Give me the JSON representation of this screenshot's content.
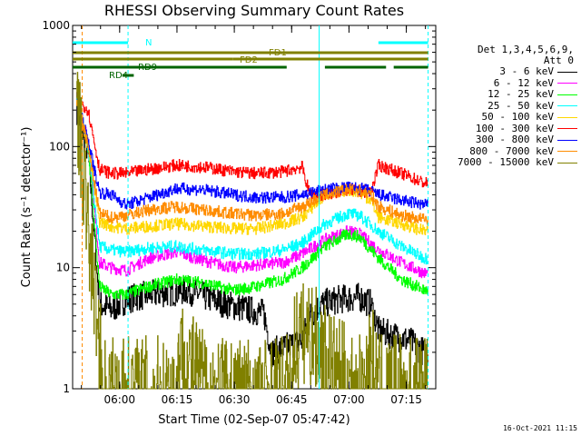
{
  "chart_data": {
    "type": "line",
    "title": "RHESSI Observing Summary Count Rates",
    "xlabel": "Start Time (02-Sep-07 05:47:42)",
    "ylabel": "Count Rate (s⁻¹ detector⁻¹)",
    "yscale": "log",
    "ylim": [
      1,
      1000
    ],
    "xlim_minutes": [
      0,
      95
    ],
    "yticks": [
      "1",
      "10",
      "100",
      "1000"
    ],
    "xticks": [
      "06:00",
      "06:15",
      "06:30",
      "06:45",
      "07:00",
      "07:15"
    ],
    "x_tick_minutes": [
      12.3,
      27.3,
      42.3,
      57.3,
      72.3,
      87.3
    ],
    "legend_title": [
      "Det 1,3,4,5,6,9,",
      "Att 0"
    ],
    "legend_position": "right",
    "series": [
      {
        "name": "3 - 6 keV",
        "color": "#000000",
        "points": [
          [
            1,
            200
          ],
          [
            4,
            90
          ],
          [
            7,
            5
          ],
          [
            10,
            4.5
          ],
          [
            14,
            5.5
          ],
          [
            20,
            6
          ],
          [
            30,
            6.5
          ],
          [
            40,
            5
          ],
          [
            50,
            4.2
          ],
          [
            52,
            2
          ],
          [
            60,
            2.5
          ],
          [
            62,
            4
          ],
          [
            65,
            5
          ],
          [
            70,
            5.5
          ],
          [
            75,
            5.7
          ],
          [
            78,
            5
          ],
          [
            80,
            3
          ],
          [
            88,
            2.5
          ],
          [
            92,
            2
          ]
        ]
      },
      {
        "name": "6 - 12 keV",
        "color": "#ff00ff",
        "points": [
          [
            1,
            250
          ],
          [
            4,
            110
          ],
          [
            7,
            11
          ],
          [
            10,
            10
          ],
          [
            14,
            9.5
          ],
          [
            20,
            12
          ],
          [
            27,
            13.5
          ],
          [
            34,
            11.5
          ],
          [
            42,
            10
          ],
          [
            48,
            10.5
          ],
          [
            55,
            11
          ],
          [
            60,
            13
          ],
          [
            66,
            17
          ],
          [
            72,
            20
          ],
          [
            75,
            19
          ],
          [
            80,
            14
          ],
          [
            86,
            11
          ],
          [
            92,
            9
          ]
        ]
      },
      {
        "name": "12 - 25 keV",
        "color": "#00ff00",
        "points": [
          [
            1,
            250
          ],
          [
            4,
            100
          ],
          [
            7,
            7
          ],
          [
            10,
            6
          ],
          [
            14,
            6
          ],
          [
            20,
            7
          ],
          [
            27,
            8
          ],
          [
            34,
            7.5
          ],
          [
            42,
            6.5
          ],
          [
            48,
            7
          ],
          [
            55,
            8
          ],
          [
            60,
            10
          ],
          [
            66,
            15
          ],
          [
            72,
            19
          ],
          [
            75,
            18
          ],
          [
            80,
            12
          ],
          [
            86,
            8
          ],
          [
            92,
            6.5
          ]
        ]
      },
      {
        "name": "25 - 50 keV",
        "color": "#00ffff",
        "points": [
          [
            1,
            250
          ],
          [
            4,
            100
          ],
          [
            7,
            15
          ],
          [
            10,
            14
          ],
          [
            14,
            13.5
          ],
          [
            20,
            14.5
          ],
          [
            27,
            15
          ],
          [
            34,
            14
          ],
          [
            42,
            13
          ],
          [
            48,
            13
          ],
          [
            55,
            14
          ],
          [
            60,
            16
          ],
          [
            66,
            23
          ],
          [
            72,
            28
          ],
          [
            75,
            27
          ],
          [
            80,
            20
          ],
          [
            86,
            15
          ],
          [
            92,
            12
          ]
        ]
      },
      {
        "name": "50 - 100 keV",
        "color": "#ffd700",
        "points": [
          [
            1,
            250
          ],
          [
            4,
            100
          ],
          [
            7,
            24
          ],
          [
            10,
            22
          ],
          [
            14,
            21
          ],
          [
            20,
            22
          ],
          [
            27,
            23
          ],
          [
            34,
            22
          ],
          [
            42,
            21
          ],
          [
            48,
            21
          ],
          [
            55,
            23
          ],
          [
            60,
            26
          ],
          [
            66,
            40
          ],
          [
            72,
            44
          ],
          [
            75,
            42
          ],
          [
            78,
            36
          ],
          [
            80,
            26
          ],
          [
            86,
            23
          ],
          [
            92,
            20
          ]
        ]
      },
      {
        "name": "100 - 300 keV",
        "color": "#ff0000",
        "points": [
          [
            1,
            250
          ],
          [
            4,
            200
          ],
          [
            7,
            65
          ],
          [
            10,
            60
          ],
          [
            14,
            60
          ],
          [
            20,
            65
          ],
          [
            27,
            70
          ],
          [
            34,
            68
          ],
          [
            42,
            62
          ],
          [
            48,
            60
          ],
          [
            55,
            62
          ],
          [
            60,
            68
          ],
          [
            62,
            40
          ],
          [
            66,
            40
          ],
          [
            72,
            44
          ],
          [
            75,
            43
          ],
          [
            78,
            42
          ],
          [
            80,
            70
          ],
          [
            86,
            60
          ],
          [
            92,
            50
          ]
        ]
      },
      {
        "name": "300 - 800 keV",
        "color": "#0000ff",
        "points": [
          [
            1,
            250
          ],
          [
            4,
            110
          ],
          [
            7,
            42
          ],
          [
            10,
            40
          ],
          [
            14,
            33
          ],
          [
            20,
            38
          ],
          [
            27,
            45
          ],
          [
            34,
            44
          ],
          [
            42,
            40
          ],
          [
            48,
            38
          ],
          [
            55,
            38
          ],
          [
            60,
            40
          ],
          [
            66,
            44
          ],
          [
            72,
            46
          ],
          [
            75,
            45
          ],
          [
            78,
            43
          ],
          [
            80,
            40
          ],
          [
            86,
            36
          ],
          [
            92,
            33
          ]
        ]
      },
      {
        "name": "800 - 7000 keV",
        "color": "#ff8c00",
        "points": [
          [
            1,
            250
          ],
          [
            4,
            100
          ],
          [
            7,
            28
          ],
          [
            10,
            26
          ],
          [
            14,
            27
          ],
          [
            20,
            30
          ],
          [
            27,
            32
          ],
          [
            34,
            30
          ],
          [
            42,
            28
          ],
          [
            48,
            27
          ],
          [
            55,
            28
          ],
          [
            60,
            32
          ],
          [
            66,
            40
          ],
          [
            72,
            44
          ],
          [
            75,
            43
          ],
          [
            78,
            40
          ],
          [
            80,
            32
          ],
          [
            86,
            27
          ],
          [
            92,
            25
          ]
        ]
      },
      {
        "name": "7000 - 15000 keV",
        "color": "#808000",
        "points": [
          [
            1,
            250
          ],
          [
            4,
            20
          ],
          [
            6,
            5
          ],
          [
            8,
            1
          ],
          [
            27,
            1
          ],
          [
            28,
            2
          ],
          [
            36,
            1
          ],
          [
            57,
            1
          ],
          [
            58,
            2.5
          ],
          [
            62,
            3
          ],
          [
            68,
            1.5
          ],
          [
            75,
            1
          ],
          [
            76,
            1
          ],
          [
            78,
            2
          ],
          [
            80,
            1
          ]
        ]
      }
    ],
    "state_bars": [
      {
        "label": "N",
        "color": "#00ffff",
        "segments": [
          [
            0,
            14.5
          ],
          [
            80,
            93
          ]
        ]
      },
      {
        "label": "FD1",
        "color": "#808000",
        "segments": [
          [
            0,
            93
          ]
        ]
      },
      {
        "label": "FD2",
        "color": "#808000",
        "segments": [
          [
            0,
            42
          ],
          [
            42,
            93
          ]
        ]
      },
      {
        "label": "RD4",
        "color": "#006400",
        "segments": [
          [
            13,
            16
          ]
        ]
      },
      {
        "label": "RD9",
        "color": "#006400",
        "segments": [
          [
            0,
            56
          ],
          [
            66,
            82
          ],
          [
            84,
            93
          ]
        ]
      }
    ],
    "vlines": [
      {
        "x": 14.5,
        "color": "#00ffff",
        "style": "dashed"
      },
      {
        "x": 64.5,
        "color": "#00ffff",
        "style": "solid"
      },
      {
        "x": 93,
        "color": "#00ffff",
        "style": "dashed"
      },
      {
        "x": 2.5,
        "color": "#ff8c00",
        "style": "dashed"
      }
    ],
    "grid": false
  },
  "footer_timestamp": "16-Oct-2021 11:15"
}
